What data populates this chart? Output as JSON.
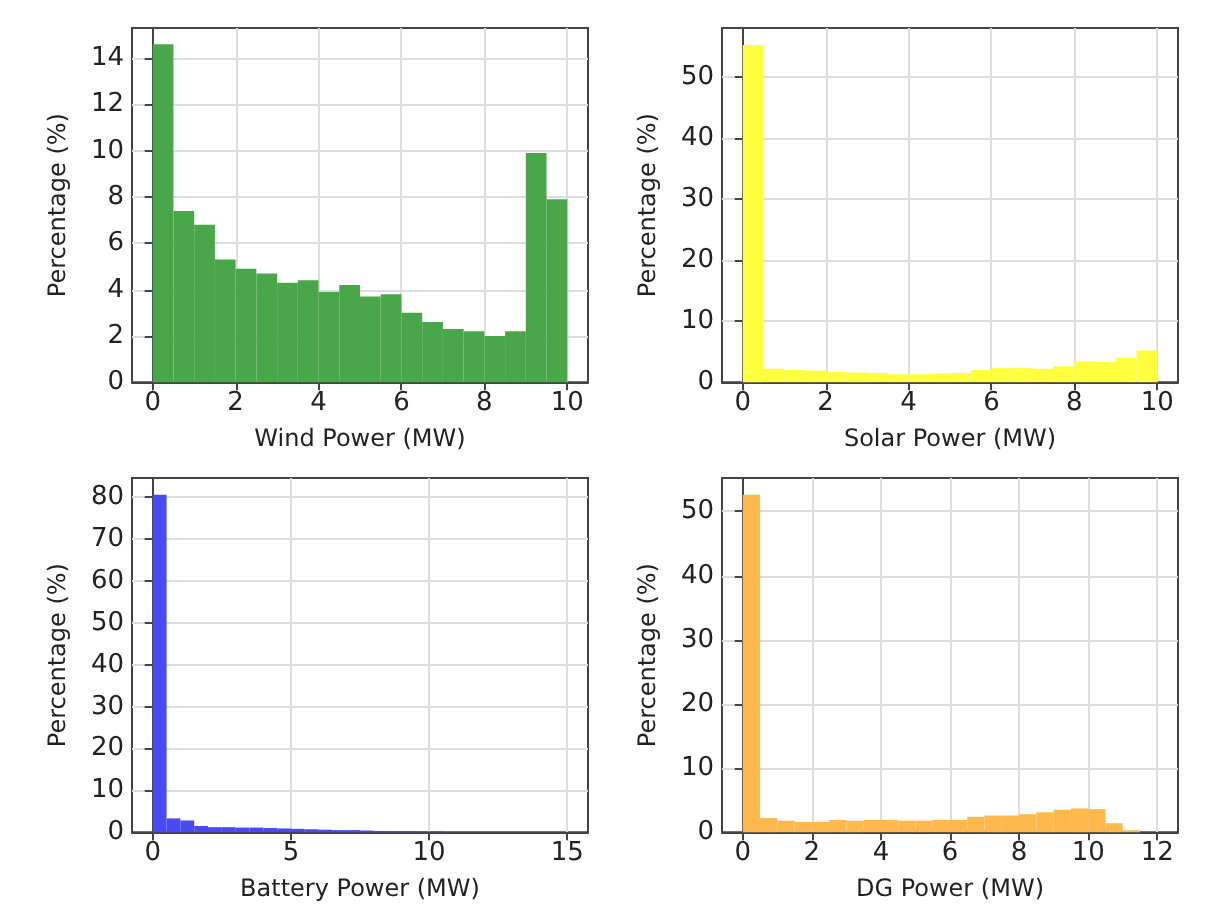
{
  "chart_data": [
    {
      "type": "histogram",
      "xlabel": "Wind Power (MW)",
      "ylabel": "Percentage (%)",
      "color": "#4aa64a",
      "grid": true,
      "bins": [
        0,
        0.5,
        1,
        1.5,
        2,
        2.5,
        3,
        3.5,
        4,
        4.5,
        5,
        5.5,
        6,
        6.5,
        7,
        7.5,
        8,
        8.5,
        9,
        9.5,
        10
      ],
      "values": [
        14.6,
        7.4,
        6.8,
        5.3,
        4.9,
        4.7,
        4.3,
        4.4,
        3.9,
        4.2,
        3.7,
        3.8,
        3.0,
        2.6,
        2.3,
        2.2,
        2.0,
        2.2,
        9.9,
        7.9
      ],
      "xlim": [
        -0.5,
        10.5
      ],
      "xticks": [
        0,
        2,
        4,
        6,
        8,
        10
      ],
      "ylim": [
        0,
        15.3
      ],
      "yticks": [
        0,
        2,
        4,
        6,
        8,
        10,
        12,
        14
      ]
    },
    {
      "type": "histogram",
      "xlabel": "Solar Power (MW)",
      "ylabel": "Percentage (%)",
      "color": "#ffff40",
      "grid": true,
      "bins": [
        0,
        0.5,
        1,
        1.5,
        2,
        2.5,
        3,
        3.5,
        4,
        4.5,
        5,
        5.5,
        6,
        6.5,
        7,
        7.5,
        8,
        8.5,
        9,
        9.5,
        10
      ],
      "values": [
        55.2,
        2.2,
        2.0,
        1.9,
        1.7,
        1.6,
        1.5,
        1.3,
        1.3,
        1.4,
        1.5,
        2.0,
        2.3,
        2.3,
        2.2,
        2.6,
        3.4,
        3.3,
        4.0,
        5.2
      ],
      "xlim": [
        -0.5,
        10.5
      ],
      "xticks": [
        0,
        2,
        4,
        6,
        8,
        10
      ],
      "ylim": [
        0,
        58
      ],
      "yticks": [
        0,
        10,
        20,
        30,
        40,
        50
      ]
    },
    {
      "type": "histogram",
      "xlabel": "Battery Power (MW)",
      "ylabel": "Percentage (%)",
      "color": "#4a4af5",
      "grid": true,
      "bins": [
        0,
        0.5,
        1,
        1.5,
        2,
        2.5,
        3,
        3.5,
        4,
        4.5,
        5,
        5.5,
        6,
        6.5,
        7,
        7.5,
        8,
        8.5,
        9,
        9.5,
        10,
        10.5,
        11
      ],
      "values": [
        80.6,
        3.3,
        2.8,
        1.5,
        1.2,
        1.2,
        1.1,
        1.1,
        1.0,
        0.9,
        0.8,
        0.7,
        0.6,
        0.5,
        0.5,
        0.4,
        0.3,
        0.3,
        0.3,
        0.2,
        0.2,
        null
      ],
      "xlim": [
        -0.75,
        15.75
      ],
      "xticks": [
        0,
        5,
        10,
        15
      ],
      "ylim": [
        0,
        84.6
      ],
      "yticks": [
        0,
        10,
        20,
        30,
        40,
        50,
        60,
        70,
        80
      ]
    },
    {
      "type": "histogram",
      "xlabel": "DG Power (MW)",
      "ylabel": "Percentage (%)",
      "color": "#ffb84d",
      "grid": true,
      "bins": [
        0,
        0.5,
        1,
        1.5,
        2,
        2.5,
        3,
        3.5,
        4,
        4.5,
        5,
        5.5,
        6,
        6.5,
        7,
        7.5,
        8,
        8.5,
        9,
        9.5,
        10,
        10.5,
        11,
        11.5
      ],
      "values": [
        52.6,
        2.2,
        1.8,
        1.6,
        1.6,
        1.9,
        1.8,
        1.9,
        1.9,
        1.8,
        1.8,
        1.9,
        1.9,
        2.4,
        2.6,
        2.6,
        2.8,
        3.1,
        3.5,
        3.7,
        3.6,
        1.4,
        0.3
      ],
      "xlim": [
        -0.6,
        12.6
      ],
      "xticks": [
        0,
        2,
        4,
        6,
        8,
        10,
        12
      ],
      "ylim": [
        0,
        55.2
      ],
      "yticks": [
        0,
        10,
        20,
        30,
        40,
        50
      ]
    }
  ]
}
